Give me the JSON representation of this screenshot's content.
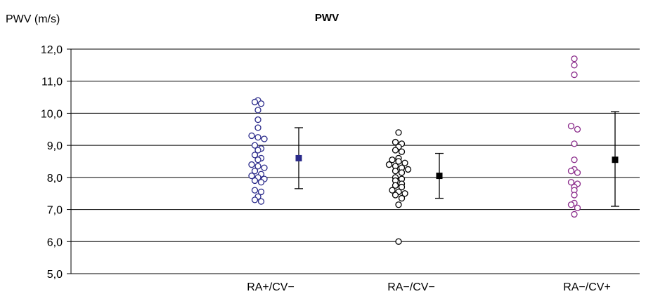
{
  "chart_data": {
    "type": "scatter",
    "title": "PWV",
    "ylabel": "PWV (m/s)",
    "ylim": [
      5.0,
      12.0
    ],
    "yticks": [
      "5,0",
      "6,0",
      "7,0",
      "8,0",
      "9,0",
      "10,0",
      "11,0",
      "12,0"
    ],
    "grid": true,
    "categories": [
      "RA+/CV−",
      "RA−/CV−",
      "RA−/CV+"
    ],
    "series": [
      {
        "category": "RA+/CV−",
        "color": "#2a2a8a",
        "points": [
          10.4,
          10.35,
          10.3,
          10.1,
          9.8,
          9.55,
          9.3,
          9.25,
          9.2,
          9.0,
          8.9,
          8.85,
          8.7,
          8.6,
          8.55,
          8.4,
          8.35,
          8.3,
          8.2,
          8.1,
          8.05,
          8.0,
          7.95,
          7.9,
          7.85,
          7.6,
          7.55,
          7.4,
          7.3,
          7.25
        ],
        "mean": 8.6,
        "err_low": 7.65,
        "err_high": 9.55
      },
      {
        "category": "RA−/CV−",
        "color": "#000000",
        "points": [
          9.4,
          9.1,
          9.05,
          8.95,
          8.85,
          8.8,
          8.6,
          8.55,
          8.5,
          8.45,
          8.4,
          8.35,
          8.3,
          8.25,
          8.2,
          8.15,
          8.0,
          7.95,
          7.9,
          7.8,
          7.75,
          7.7,
          7.6,
          7.55,
          7.5,
          7.45,
          7.35,
          7.15,
          6.0
        ],
        "mean": 8.05,
        "err_low": 7.35,
        "err_high": 8.75
      },
      {
        "category": "RA−/CV+",
        "color": "#8a2a8a",
        "points": [
          11.7,
          11.5,
          11.2,
          9.6,
          9.5,
          9.05,
          8.55,
          8.25,
          8.2,
          8.15,
          7.85,
          7.8,
          7.7,
          7.6,
          7.45,
          7.2,
          7.15,
          7.05,
          6.85
        ],
        "mean": 8.55,
        "err_low": 7.1,
        "err_high": 10.05
      }
    ]
  }
}
